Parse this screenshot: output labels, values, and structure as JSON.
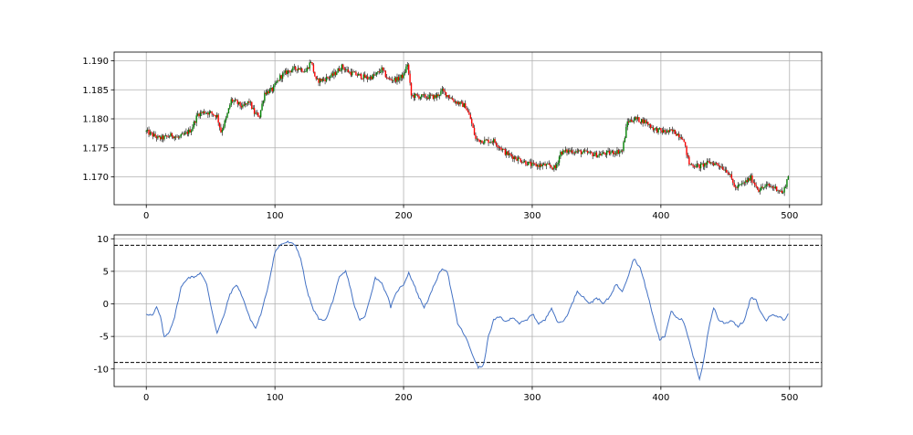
{
  "chart_data": [
    {
      "type": "candlestick",
      "panel": "price",
      "xlim": [
        -25,
        525
      ],
      "ylim": [
        1.1652,
        1.1915
      ],
      "x_ticks": [
        0,
        100,
        200,
        300,
        400,
        500
      ],
      "y_ticks": [
        1.17,
        1.175,
        1.18,
        1.185,
        1.19
      ],
      "grid": true,
      "colors": {
        "up": "#008000",
        "down": "#ff0000",
        "wick": "#000000"
      },
      "n_candles": 500,
      "close_anchors": [
        [
          0,
          1.1778
        ],
        [
          5,
          1.1772
        ],
        [
          10,
          1.1766
        ],
        [
          15,
          1.1768
        ],
        [
          20,
          1.1772
        ],
        [
          25,
          1.1767
        ],
        [
          30,
          1.1773
        ],
        [
          35,
          1.1782
        ],
        [
          40,
          1.1808
        ],
        [
          45,
          1.1812
        ],
        [
          50,
          1.181
        ],
        [
          55,
          1.1805
        ],
        [
          58,
          1.1778
        ],
        [
          62,
          1.18
        ],
        [
          66,
          1.1832
        ],
        [
          70,
          1.1828
        ],
        [
          75,
          1.182
        ],
        [
          80,
          1.183
        ],
        [
          84,
          1.181
        ],
        [
          88,
          1.1805
        ],
        [
          92,
          1.1845
        ],
        [
          98,
          1.185
        ],
        [
          104,
          1.1872
        ],
        [
          110,
          1.1882
        ],
        [
          118,
          1.1888
        ],
        [
          124,
          1.1882
        ],
        [
          128,
          1.19
        ],
        [
          132,
          1.1865
        ],
        [
          138,
          1.1868
        ],
        [
          145,
          1.1875
        ],
        [
          152,
          1.189
        ],
        [
          158,
          1.188
        ],
        [
          165,
          1.1875
        ],
        [
          172,
          1.187
        ],
        [
          178,
          1.1875
        ],
        [
          183,
          1.1885
        ],
        [
          188,
          1.1868
        ],
        [
          195,
          1.1868
        ],
        [
          200,
          1.1875
        ],
        [
          203,
          1.1895
        ],
        [
          206,
          1.184
        ],
        [
          215,
          1.1838
        ],
        [
          225,
          1.1838
        ],
        [
          230,
          1.1848
        ],
        [
          240,
          1.183
        ],
        [
          248,
          1.1822
        ],
        [
          252,
          1.18
        ],
        [
          256,
          1.1765
        ],
        [
          262,
          1.1762
        ],
        [
          270,
          1.1762
        ],
        [
          280,
          1.174
        ],
        [
          290,
          1.173
        ],
        [
          300,
          1.172
        ],
        [
          310,
          1.172
        ],
        [
          318,
          1.1715
        ],
        [
          322,
          1.1742
        ],
        [
          330,
          1.1745
        ],
        [
          340,
          1.1742
        ],
        [
          350,
          1.1738
        ],
        [
          362,
          1.1742
        ],
        [
          370,
          1.1745
        ],
        [
          374,
          1.1795
        ],
        [
          380,
          1.18
        ],
        [
          388,
          1.1795
        ],
        [
          395,
          1.1782
        ],
        [
          402,
          1.1778
        ],
        [
          410,
          1.1778
        ],
        [
          417,
          1.1768
        ],
        [
          422,
          1.1722
        ],
        [
          430,
          1.1718
        ],
        [
          438,
          1.1725
        ],
        [
          444,
          1.1722
        ],
        [
          452,
          1.171
        ],
        [
          458,
          1.168
        ],
        [
          465,
          1.169
        ],
        [
          470,
          1.1698
        ],
        [
          476,
          1.1678
        ],
        [
          483,
          1.1685
        ],
        [
          490,
          1.168
        ],
        [
          495,
          1.1672
        ],
        [
          499,
          1.1702
        ]
      ]
    },
    {
      "type": "line",
      "panel": "oscillator",
      "xlim": [
        -25,
        525
      ],
      "ylim": [
        -12.7,
        10.6
      ],
      "x_ticks": [
        0,
        100,
        200,
        300,
        400,
        500
      ],
      "y_ticks": [
        10,
        5,
        0,
        -5,
        -10
      ],
      "grid": true,
      "line_color": "#4472c4",
      "hlines": [
        9,
        -9
      ],
      "hline_color": "#000000",
      "hline_style": "dashed",
      "points": [
        [
          0,
          -1.5
        ],
        [
          5,
          -1.8
        ],
        [
          8,
          -0.5
        ],
        [
          11,
          -2.0
        ],
        [
          14,
          -5.2
        ],
        [
          18,
          -4.2
        ],
        [
          22,
          -2.0
        ],
        [
          27,
          2.5
        ],
        [
          32,
          4.0
        ],
        [
          38,
          4.2
        ],
        [
          42,
          4.8
        ],
        [
          47,
          3.0
        ],
        [
          51,
          -1.0
        ],
        [
          55,
          -4.5
        ],
        [
          60,
          -2.0
        ],
        [
          65,
          1.5
        ],
        [
          70,
          3.0
        ],
        [
          75,
          1.0
        ],
        [
          80,
          -2.0
        ],
        [
          85,
          -3.8
        ],
        [
          90,
          -1.0
        ],
        [
          95,
          3.0
        ],
        [
          100,
          8.0
        ],
        [
          105,
          9.2
        ],
        [
          110,
          9.5
        ],
        [
          116,
          9.0
        ],
        [
          120,
          7.0
        ],
        [
          125,
          2.0
        ],
        [
          130,
          -1.0
        ],
        [
          135,
          -2.5
        ],
        [
          140,
          -2.3
        ],
        [
          145,
          0.5
        ],
        [
          150,
          4.0
        ],
        [
          155,
          5.0
        ],
        [
          158,
          3.0
        ],
        [
          162,
          -0.5
        ],
        [
          166,
          -2.5
        ],
        [
          170,
          -2.0
        ],
        [
          174,
          1.0
        ],
        [
          178,
          4.0
        ],
        [
          182,
          3.5
        ],
        [
          187,
          1.5
        ],
        [
          190,
          -0.5
        ],
        [
          195,
          2.0
        ],
        [
          200,
          3.0
        ],
        [
          204,
          4.8
        ],
        [
          208,
          3.0
        ],
        [
          212,
          1.0
        ],
        [
          216,
          -0.5
        ],
        [
          220,
          1.0
        ],
        [
          225,
          3.5
        ],
        [
          230,
          5.5
        ],
        [
          234,
          5.0
        ],
        [
          238,
          1.0
        ],
        [
          242,
          -3.0
        ],
        [
          248,
          -5.0
        ],
        [
          254,
          -8.0
        ],
        [
          258,
          -9.8
        ],
        [
          262,
          -9.5
        ],
        [
          266,
          -5.0
        ],
        [
          270,
          -2.5
        ],
        [
          275,
          -2.0
        ],
        [
          280,
          -2.8
        ],
        [
          285,
          -2.0
        ],
        [
          290,
          -3.0
        ],
        [
          296,
          -2.5
        ],
        [
          300,
          -1.5
        ],
        [
          305,
          -3.0
        ],
        [
          310,
          -2.5
        ],
        [
          315,
          -0.5
        ],
        [
          320,
          -3.0
        ],
        [
          325,
          -2.5
        ],
        [
          330,
          -0.5
        ],
        [
          335,
          2.0
        ],
        [
          340,
          1.0
        ],
        [
          345,
          0.0
        ],
        [
          350,
          1.0
        ],
        [
          355,
          0.0
        ],
        [
          360,
          1.0
        ],
        [
          365,
          3.0
        ],
        [
          370,
          2.0
        ],
        [
          374,
          4.0
        ],
        [
          379,
          7.0
        ],
        [
          384,
          5.5
        ],
        [
          389,
          2.0
        ],
        [
          394,
          -2.0
        ],
        [
          399,
          -5.5
        ],
        [
          403,
          -5.0
        ],
        [
          408,
          -1.0
        ],
        [
          412,
          -2.0
        ],
        [
          417,
          -2.5
        ],
        [
          421,
          -5.0
        ],
        [
          425,
          -8.0
        ],
        [
          430,
          -11.5
        ],
        [
          433,
          -9.0
        ],
        [
          437,
          -4.0
        ],
        [
          441,
          -0.5
        ],
        [
          445,
          -2.5
        ],
        [
          450,
          -3.0
        ],
        [
          455,
          -2.5
        ],
        [
          460,
          -3.5
        ],
        [
          465,
          -2.5
        ],
        [
          470,
          1.0
        ],
        [
          474,
          0.5
        ],
        [
          478,
          -1.5
        ],
        [
          482,
          -2.5
        ],
        [
          487,
          -1.5
        ],
        [
          492,
          -2.0
        ],
        [
          496,
          -2.5
        ],
        [
          499,
          -1.5
        ]
      ]
    }
  ]
}
